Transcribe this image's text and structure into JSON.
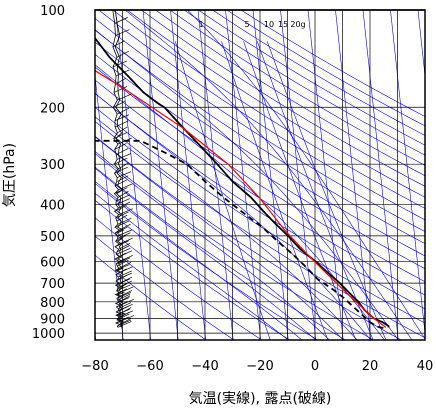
{
  "chart_data": {
    "type": "line",
    "title": "",
    "xlabel": "気温(実線), 露点(破線)",
    "ylabel": "気圧(hPa)",
    "x_axis": {
      "min": -80,
      "max": 40,
      "ticks": [
        -80,
        -60,
        -40,
        -20,
        0,
        20,
        40
      ],
      "tick_labels": [
        "−80",
        "−60",
        "−40",
        "−20",
        "0",
        "20",
        "40"
      ]
    },
    "y_axis": {
      "scale": "log",
      "reversed": true,
      "min": 100,
      "max": 1050,
      "ticks": [
        100,
        200,
        300,
        400,
        500,
        600,
        700,
        800,
        900,
        1000
      ],
      "tick_labels": [
        "100",
        "200",
        "300",
        "400",
        "500",
        "600",
        "700",
        "800",
        "900",
        "1000"
      ]
    },
    "grid": true,
    "mixing_ratio_labels": [
      "1",
      "5",
      "10",
      "15",
      "20g"
    ],
    "mixing_ratio_values": [
      1,
      5,
      10,
      15,
      20
    ],
    "series": [
      {
        "role": "temperature",
        "style": "solid",
        "color": "#000000",
        "points": [
          [
            -73,
            100
          ],
          [
            -71,
            106
          ],
          [
            -70,
            117
          ],
          [
            -64,
            140
          ],
          [
            -58,
            160
          ],
          [
            -53,
            180
          ],
          [
            -48,
            195
          ],
          [
            -46,
            200
          ],
          [
            -41,
            226
          ],
          [
            -35,
            260
          ],
          [
            -29,
            300
          ],
          [
            -24,
            340
          ],
          [
            -18,
            380
          ],
          [
            -14,
            420
          ],
          [
            -10,
            460
          ],
          [
            -6,
            500
          ],
          [
            -2,
            550
          ],
          [
            3,
            600
          ],
          [
            7,
            650
          ],
          [
            11,
            700
          ],
          [
            14,
            750
          ],
          [
            17,
            800
          ],
          [
            19,
            850
          ],
          [
            22,
            900
          ],
          [
            25,
            925
          ],
          [
            27,
            950
          ],
          [
            27,
            960
          ]
        ]
      },
      {
        "role": "dewpoint",
        "style": "dashed",
        "color": "#000000",
        "points": [
          [
            -84,
            254
          ],
          [
            -56,
            254
          ],
          [
            -48,
            275
          ],
          [
            -40,
            300
          ],
          [
            -34,
            340
          ],
          [
            -28,
            380
          ],
          [
            -22,
            420
          ],
          [
            -15,
            470
          ],
          [
            -10,
            520
          ],
          [
            -5,
            570
          ],
          [
            -1,
            620
          ],
          [
            3,
            680
          ],
          [
            8,
            730
          ],
          [
            12,
            780
          ],
          [
            15,
            830
          ],
          [
            18,
            880
          ],
          [
            20,
            920
          ],
          [
            23,
            955
          ],
          [
            26,
            968
          ]
        ]
      },
      {
        "role": "reference",
        "style": "solid",
        "color": "#ff0000",
        "points": [
          [
            -80,
            135
          ],
          [
            -60,
            175
          ],
          [
            -40,
            232
          ],
          [
            -25,
            300
          ],
          [
            -15,
            380
          ],
          [
            -7,
            480
          ],
          [
            1,
            580
          ],
          [
            7,
            660
          ],
          [
            13,
            750
          ],
          [
            18,
            830
          ],
          [
            22,
            900
          ],
          [
            26,
            960
          ]
        ]
      }
    ],
    "wind_barbs": {
      "color": "#000000",
      "x_range": [
        -73,
        -66
      ],
      "pressure_range": [
        100,
        960
      ]
    },
    "colors": {
      "isotherm": "#0000ff",
      "dry_adiabat": "#0000ff",
      "moist_adiabat": "#0000ff",
      "grid": "#000000"
    }
  }
}
